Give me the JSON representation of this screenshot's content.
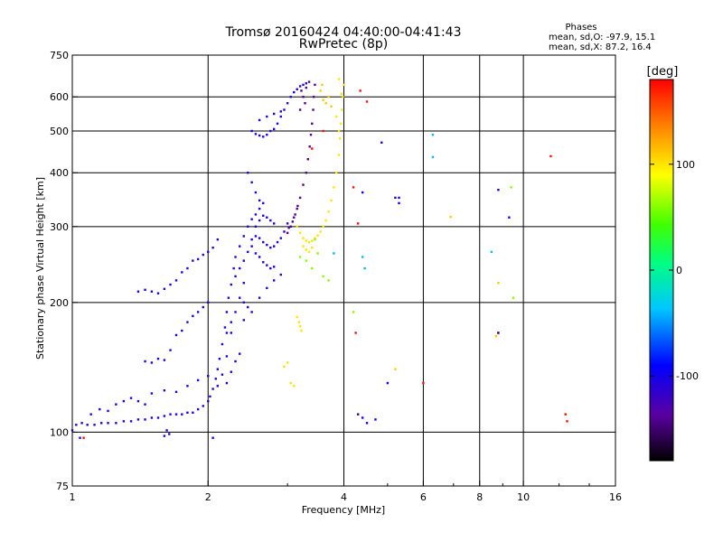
{
  "chart_data": {
    "type": "scatter",
    "title": "Tromsø 20160424 04:40:00-04:41:43",
    "subtitle": "RwPretec (8p)",
    "phases_header": "Phases",
    "phases_line_o": "mean, sd,O:  -97.9, 15.1",
    "phases_line_x": "mean, sd,X:   87.2, 16.4",
    "xlabel": "Frequency [MHz]",
    "ylabel": "Stationary phase Virtual Height [km]",
    "x_scale": "log",
    "y_scale": "log",
    "xlim": [
      1,
      16
    ],
    "ylim": [
      75,
      750
    ],
    "x_ticks": [
      1,
      2,
      4,
      6,
      8,
      10,
      16
    ],
    "x_tick_labels": [
      "1",
      "2",
      "4",
      "6",
      "8",
      "10",
      "16"
    ],
    "x_grid": [
      2,
      4,
      6,
      8,
      10
    ],
    "y_ticks": [
      75,
      100,
      200,
      300,
      400,
      500,
      600,
      750
    ],
    "y_tick_labels": [
      "75",
      "100",
      "200",
      "300",
      "400",
      "500",
      "600",
      "750"
    ],
    "y_grid": [
      100,
      200,
      300,
      400,
      500,
      600
    ],
    "colorbar": {
      "label": "[deg]",
      "range": [
        -180,
        180
      ],
      "ticks": [
        100,
        0,
        -100
      ],
      "tick_labels": [
        "100",
        "0",
        "-100"
      ]
    },
    "colors": {
      "red": "#ff0000",
      "orange": "#ff8800",
      "yellow": "#ffff00",
      "green": "#00e000",
      "cyan": "#00e0e0",
      "blue": "#0044ff",
      "violet": "#5500cc",
      "black": "#000000",
      "grid": "#000000"
    },
    "series": [
      {
        "phase": -110,
        "points": [
          [
            1.02,
            104
          ],
          [
            1.05,
            105
          ],
          [
            1.08,
            104
          ],
          [
            1.12,
            104
          ],
          [
            1.16,
            105
          ],
          [
            1.2,
            105
          ],
          [
            1.25,
            105
          ],
          [
            1.3,
            106
          ],
          [
            1.35,
            106
          ],
          [
            1.4,
            107
          ],
          [
            1.45,
            107
          ],
          [
            1.5,
            108
          ],
          [
            1.55,
            108
          ],
          [
            1.6,
            109
          ],
          [
            1.65,
            110
          ],
          [
            1.7,
            110
          ],
          [
            1.75,
            110
          ],
          [
            1.8,
            111
          ],
          [
            1.85,
            111
          ],
          [
            1.9,
            113
          ],
          [
            1.95,
            115
          ],
          [
            2.0,
            118
          ],
          [
            2.02,
            121
          ],
          [
            2.05,
            126
          ],
          [
            2.08,
            133
          ],
          [
            2.1,
            140
          ],
          [
            2.12,
            148
          ],
          [
            2.15,
            160
          ],
          [
            2.18,
            175
          ],
          [
            2.2,
            190
          ],
          [
            2.22,
            205
          ],
          [
            2.25,
            220
          ],
          [
            2.28,
            240
          ],
          [
            2.3,
            255
          ],
          [
            2.35,
            270
          ],
          [
            2.4,
            285
          ],
          [
            2.45,
            300
          ],
          [
            2.5,
            312
          ],
          [
            2.55,
            320
          ],
          [
            2.6,
            330
          ],
          [
            2.1,
            128
          ],
          [
            2.15,
            136
          ],
          [
            2.2,
            150
          ],
          [
            2.25,
            170
          ],
          [
            2.3,
            190
          ],
          [
            2.35,
            205
          ],
          [
            2.4,
            222
          ],
          [
            1.4,
            212
          ],
          [
            1.45,
            214
          ],
          [
            1.5,
            212
          ],
          [
            1.55,
            210
          ],
          [
            1.6,
            215
          ],
          [
            1.65,
            220
          ],
          [
            1.7,
            225
          ],
          [
            1.75,
            235
          ],
          [
            1.8,
            240
          ],
          [
            1.85,
            250
          ],
          [
            1.9,
            252
          ],
          [
            1.95,
            258
          ],
          [
            2.0,
            262
          ],
          [
            2.05,
            268
          ],
          [
            2.1,
            280
          ],
          [
            1.45,
            146
          ],
          [
            1.5,
            145
          ],
          [
            1.55,
            148
          ],
          [
            1.6,
            147
          ],
          [
            1.65,
            155
          ],
          [
            1.7,
            168
          ],
          [
            1.75,
            172
          ],
          [
            1.8,
            180
          ],
          [
            1.85,
            186
          ],
          [
            1.9,
            190
          ],
          [
            1.95,
            195
          ],
          [
            2.0,
            200
          ],
          [
            1.5,
            123
          ],
          [
            1.6,
            125
          ],
          [
            1.7,
            124
          ],
          [
            1.8,
            128
          ],
          [
            1.9,
            132
          ],
          [
            2.0,
            135
          ],
          [
            1.1,
            110
          ],
          [
            1.15,
            113
          ],
          [
            1.2,
            112
          ],
          [
            1.25,
            116
          ],
          [
            1.3,
            118
          ],
          [
            1.35,
            120
          ],
          [
            1.4,
            118
          ],
          [
            1.45,
            116
          ],
          [
            1.6,
            98
          ],
          [
            1.62,
            101
          ],
          [
            1.64,
            99
          ],
          [
            1.0,
            101
          ],
          [
            1.04,
            97
          ],
          [
            2.5,
            280
          ],
          [
            2.55,
            285
          ],
          [
            2.6,
            282
          ],
          [
            2.65,
            276
          ],
          [
            2.7,
            272
          ],
          [
            2.75,
            268
          ],
          [
            2.8,
            270
          ],
          [
            2.85,
            276
          ],
          [
            2.9,
            282
          ],
          [
            2.95,
            292
          ],
          [
            3.0,
            305
          ],
          [
            2.55,
            300
          ],
          [
            2.6,
            310
          ],
          [
            2.65,
            318
          ],
          [
            2.7,
            315
          ],
          [
            2.75,
            310
          ],
          [
            2.8,
            305
          ],
          [
            2.4,
            250
          ],
          [
            2.45,
            262
          ],
          [
            2.5,
            270
          ],
          [
            2.55,
            260
          ],
          [
            2.6,
            255
          ],
          [
            2.65,
            248
          ],
          [
            2.7,
            244
          ],
          [
            2.75,
            240
          ],
          [
            2.8,
            242
          ],
          [
            2.45,
            400
          ],
          [
            2.5,
            380
          ],
          [
            2.55,
            360
          ],
          [
            2.6,
            345
          ],
          [
            2.65,
            340
          ],
          [
            2.5,
            500
          ],
          [
            2.55,
            492
          ],
          [
            2.6,
            488
          ],
          [
            2.65,
            485
          ],
          [
            2.7,
            490
          ],
          [
            2.75,
            500
          ],
          [
            2.8,
            505
          ],
          [
            2.85,
            520
          ],
          [
            2.9,
            540
          ],
          [
            2.95,
            560
          ],
          [
            3.0,
            580
          ],
          [
            3.05,
            600
          ],
          [
            3.1,
            615
          ],
          [
            3.15,
            625
          ],
          [
            3.2,
            635
          ],
          [
            3.25,
            640
          ],
          [
            3.3,
            645
          ],
          [
            2.6,
            530
          ],
          [
            2.7,
            540
          ],
          [
            2.8,
            548
          ],
          [
            2.9,
            555
          ],
          [
            2.3,
            230
          ],
          [
            2.35,
            240
          ],
          [
            2.4,
            200
          ],
          [
            2.45,
            195
          ],
          [
            2.2,
            170
          ],
          [
            2.25,
            180
          ],
          [
            2.4,
            182
          ],
          [
            2.5,
            190
          ],
          [
            2.6,
            205
          ],
          [
            2.7,
            216
          ],
          [
            2.8,
            225
          ],
          [
            2.9,
            232
          ],
          [
            2.2,
            130
          ],
          [
            2.25,
            138
          ],
          [
            2.3,
            146
          ],
          [
            2.35,
            152
          ]
        ]
      },
      {
        "phase": -140,
        "points": [
          [
            3.05,
            300
          ],
          [
            3.1,
            315
          ],
          [
            3.15,
            330
          ],
          [
            3.2,
            350
          ],
          [
            3.25,
            375
          ],
          [
            3.3,
            400
          ],
          [
            3.33,
            430
          ],
          [
            3.36,
            460
          ],
          [
            3.38,
            490
          ],
          [
            3.4,
            520
          ],
          [
            3.42,
            560
          ],
          [
            3.43,
            600
          ],
          [
            3.45,
            640
          ],
          [
            3.0,
            290
          ],
          [
            3.02,
            298
          ],
          [
            3.08,
            308
          ],
          [
            3.12,
            320
          ],
          [
            3.16,
            335
          ],
          [
            3.2,
            560
          ],
          [
            3.25,
            600
          ],
          [
            3.3,
            630
          ],
          [
            3.35,
            650
          ],
          [
            3.28,
            580
          ],
          [
            3.22,
            620
          ]
        ]
      },
      {
        "phase": 100,
        "points": [
          [
            3.15,
            300
          ],
          [
            3.2,
            290
          ],
          [
            3.25,
            282
          ],
          [
            3.3,
            278
          ],
          [
            3.35,
            276
          ],
          [
            3.4,
            278
          ],
          [
            3.45,
            282
          ],
          [
            3.5,
            286
          ],
          [
            3.55,
            292
          ],
          [
            3.6,
            300
          ],
          [
            3.65,
            310
          ],
          [
            3.7,
            325
          ],
          [
            3.75,
            345
          ],
          [
            3.8,
            370
          ],
          [
            3.85,
            400
          ],
          [
            3.9,
            440
          ],
          [
            3.92,
            480
          ],
          [
            3.94,
            520
          ],
          [
            3.96,
            560
          ],
          [
            3.98,
            600
          ],
          [
            4.0,
            640
          ],
          [
            3.9,
            660
          ],
          [
            3.95,
            610
          ],
          [
            3.25,
            270
          ],
          [
            3.3,
            265
          ],
          [
            3.35,
            262
          ],
          [
            3.4,
            268
          ],
          [
            3.18,
            180
          ],
          [
            3.2,
            176
          ],
          [
            3.15,
            185
          ],
          [
            3.22,
            172
          ],
          [
            3.05,
            130
          ],
          [
            3.1,
            128
          ],
          [
            2.95,
            142
          ],
          [
            3.0,
            145
          ],
          [
            3.85,
            540
          ],
          [
            3.9,
            500
          ]
        ]
      },
      {
        "phase": 110,
        "points": [
          [
            3.6,
            590
          ],
          [
            3.65,
            580
          ],
          [
            3.7,
            600
          ],
          [
            3.55,
            620
          ],
          [
            3.75,
            570
          ],
          [
            3.58,
            640
          ],
          [
            8.7,
            167
          ],
          [
            8.8,
            222
          ],
          [
            5.2,
            140
          ],
          [
            6.9,
            316
          ]
        ]
      },
      {
        "phase": 175,
        "points": [
          [
            1.06,
            97
          ],
          [
            4.35,
            620
          ],
          [
            4.5,
            585
          ],
          [
            4.3,
            305
          ],
          [
            4.25,
            170
          ],
          [
            6.0,
            130
          ],
          [
            11.5,
            437
          ],
          [
            12.4,
            110
          ],
          [
            12.5,
            106
          ],
          [
            3.4,
            455
          ],
          [
            3.6,
            500
          ],
          [
            4.2,
            370
          ],
          [
            8.8,
            170
          ]
        ]
      },
      {
        "phase": 60,
        "points": [
          [
            3.2,
            255
          ],
          [
            3.3,
            250
          ],
          [
            3.4,
            240
          ],
          [
            3.6,
            230
          ],
          [
            3.7,
            225
          ],
          [
            3.5,
            260
          ],
          [
            9.4,
            370
          ],
          [
            9.5,
            205
          ],
          [
            4.2,
            190
          ],
          [
            3.45,
            280
          ]
        ]
      },
      {
        "phase": -40,
        "points": [
          [
            6.3,
            490
          ],
          [
            6.3,
            435
          ],
          [
            8.5,
            262
          ],
          [
            3.8,
            260
          ],
          [
            4.4,
            255
          ],
          [
            4.45,
            240
          ]
        ]
      },
      {
        "phase": -100,
        "points": [
          [
            4.85,
            470
          ],
          [
            4.4,
            360
          ],
          [
            5.3,
            350
          ],
          [
            5.3,
            340
          ],
          [
            8.8,
            365
          ],
          [
            9.3,
            315
          ],
          [
            4.4,
            108
          ],
          [
            4.7,
            107
          ],
          [
            4.5,
            105
          ],
          [
            2.05,
            97
          ],
          [
            5.0,
            130
          ]
        ]
      },
      {
        "phase": -150,
        "points": [
          [
            4.3,
            110
          ],
          [
            5.2,
            350
          ],
          [
            8.8,
            170
          ]
        ]
      }
    ]
  }
}
